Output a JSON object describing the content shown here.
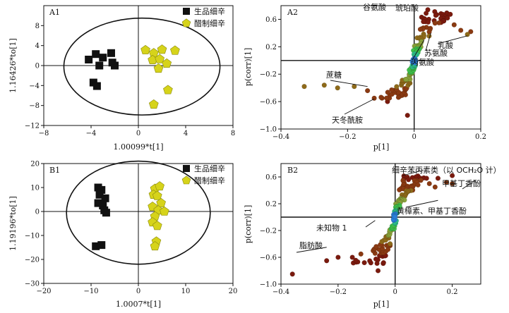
{
  "chart_data": [
    {
      "panel": "A1",
      "type": "scatter",
      "xlabel": "1.00099*t[1]",
      "ylabel": "1.16426*to[1]",
      "xlim": [
        -8,
        8
      ],
      "ylim": [
        -12,
        12
      ],
      "xticks": [
        "−8",
        "−4",
        "0",
        "4",
        "8"
      ],
      "yticks": [
        "8",
        "4",
        "0",
        "−4",
        "−8",
        "−12"
      ],
      "ellipse": {
        "cx": 0.3,
        "cy": -0.2,
        "rx": 6.6,
        "ry": 9.7
      },
      "series": [
        {
          "name": "生品细辛",
          "marker": "square",
          "color": "#111111",
          "points": [
            [
              -4.2,
              1.2
            ],
            [
              -3.6,
              2.3
            ],
            [
              -3.0,
              1.6
            ],
            [
              -2.3,
              2.5
            ],
            [
              -2.2,
              0.6
            ],
            [
              -2.0,
              0.0
            ],
            [
              -3.3,
              0.0
            ],
            [
              -3.8,
              -3.4
            ],
            [
              -3.5,
              -4.1
            ]
          ]
        },
        {
          "name": "醋制细辛",
          "marker": "pentagon",
          "color": "#d6d31a",
          "points": [
            [
              0.6,
              3.1
            ],
            [
              2.0,
              3.2
            ],
            [
              1.3,
              2.5
            ],
            [
              3.1,
              3.0
            ],
            [
              1.2,
              1.1
            ],
            [
              1.8,
              1.3
            ],
            [
              2.4,
              0.4
            ],
            [
              1.7,
              -0.6
            ],
            [
              2.5,
              -4.9
            ],
            [
              1.3,
              -7.8
            ]
          ]
        }
      ]
    },
    {
      "panel": "A2",
      "type": "scatter",
      "xlabel": "p[1]",
      "ylabel": "p(corr)[1]",
      "xlim": [
        -0.4,
        0.2
      ],
      "ylim": [
        -1.0,
        0.8
      ],
      "xticks": [
        "−0.4",
        "−0.2",
        "0",
        "0.2"
      ],
      "yticks": [
        "0.6",
        "0.2",
        "−0.2",
        "−0.6",
        "−1.0"
      ],
      "annotations": [
        {
          "text": "谷氨酸",
          "x": 0.05,
          "y": 0.68
        },
        {
          "text": "琥珀酸",
          "x": 0.1,
          "y": 0.6
        },
        {
          "text": "乳酸",
          "x": 0.16,
          "y": 0.36
        },
        {
          "text": "苏氨酸",
          "x": 0.05,
          "y": 0.4
        },
        {
          "text": "丙氨酸",
          "x": 0.03,
          "y": 0.3
        },
        {
          "text": "蔗糖",
          "x": -0.14,
          "y": -0.38
        },
        {
          "text": "天冬酰胺",
          "x": -0.12,
          "y": -0.56
        }
      ]
    },
    {
      "panel": "B1",
      "type": "scatter",
      "xlabel": "1.0007*t[1]",
      "ylabel": "1.19196*to[1]",
      "xlim": [
        -20,
        20
      ],
      "ylim": [
        -30,
        20
      ],
      "xticks": [
        "−20",
        "−10",
        "0",
        "10",
        "20"
      ],
      "yticks": [
        "20",
        "10",
        "0",
        "−10",
        "−20",
        "−30"
      ],
      "ellipse": {
        "cx": 0.0,
        "cy": -0.5,
        "rx": 15.2,
        "ry": 21.5
      },
      "series": [
        {
          "name": "生品细辛",
          "marker": "square",
          "color": "#111111",
          "points": [
            [
              -8.5,
              10.0
            ],
            [
              -7.8,
              9.0
            ],
            [
              -8.2,
              7.0
            ],
            [
              -7.0,
              5.5
            ],
            [
              -8.5,
              3.5
            ],
            [
              -7.5,
              2.5
            ],
            [
              -6.8,
              -0.5
            ],
            [
              -7.2,
              0.5
            ],
            [
              -9.0,
              -14.5
            ],
            [
              -7.8,
              -14.0
            ]
          ]
        },
        {
          "name": "醋制细辛",
          "marker": "pentagon",
          "color": "#d6d31a",
          "points": [
            [
              3.5,
              9.5
            ],
            [
              4.5,
              10.5
            ],
            [
              3.2,
              7.0
            ],
            [
              4.0,
              6.5
            ],
            [
              4.8,
              3.5
            ],
            [
              3.0,
              2.0
            ],
            [
              4.2,
              0.5
            ],
            [
              3.5,
              -2.0
            ],
            [
              5.5,
              0.0
            ],
            [
              3.0,
              -4.5
            ],
            [
              4.0,
              -6.0
            ],
            [
              3.8,
              -12.5
            ],
            [
              3.5,
              -14.5
            ]
          ]
        }
      ]
    },
    {
      "panel": "B2",
      "type": "scatter",
      "xlabel": "p[1]",
      "ylabel": "p(corr)[1]",
      "xlim": [
        -0.4,
        0.3
      ],
      "ylim": [
        -1.0,
        0.8
      ],
      "xticks": [
        "−0.4",
        "−0.2",
        "0",
        "0.2"
      ],
      "yticks": [
        "0.6",
        "0.2",
        "−0.2",
        "−0.6",
        "−1.0"
      ],
      "annotations": [
        {
          "text": "细辛苯丙素类（以 OCH₂O 计）",
          "x": 0.1,
          "y": 0.7
        },
        {
          "text": "甲基丁香酚",
          "x": 0.28,
          "y": 0.55
        },
        {
          "text": "黄樟素、甲基丁香酚",
          "x": 0.15,
          "y": 0.25
        },
        {
          "text": "未知物 1",
          "x": -0.07,
          "y": -0.05
        },
        {
          "text": "脂肪酸",
          "x": -0.24,
          "y": -0.45
        }
      ]
    }
  ],
  "figure": {
    "legend": [
      {
        "label": "生品细辛",
        "marker": "square",
        "color": "#111111"
      },
      {
        "label": "醋制细辛",
        "marker": "pentagon",
        "color": "#d6d31a"
      }
    ]
  }
}
